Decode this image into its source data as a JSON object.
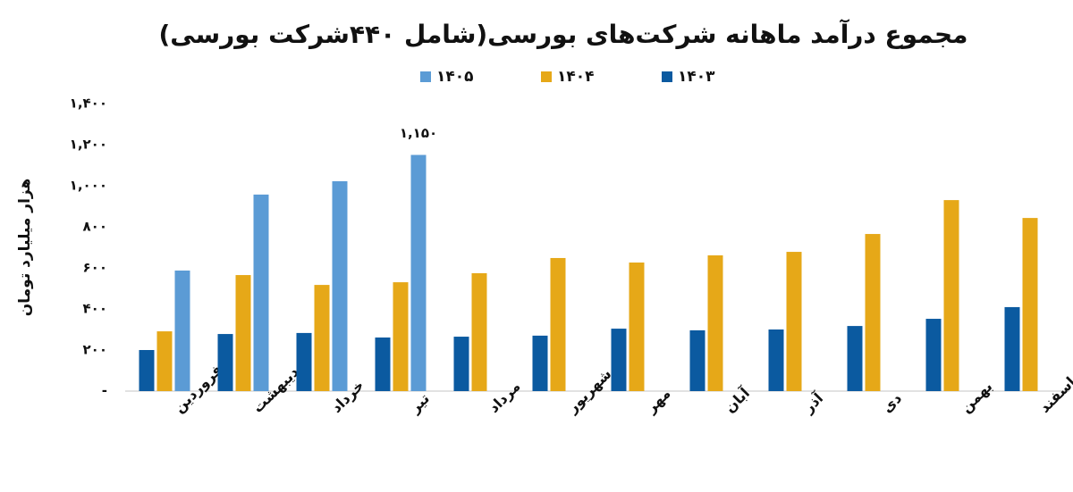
{
  "chart_data": {
    "type": "bar",
    "title": "مجموع درآمد ماهانه شرکت‌های بورسی(شامل ۴۴۰شرکت بورسی)",
    "y_label": "هزار میلیارد تومان",
    "categories": [
      "فروردین",
      "اردیبهشت",
      "خرداد",
      "تیر",
      "مرداد",
      "شهریور",
      "مهر",
      "آبان",
      "آذر",
      "دی",
      "بهمن",
      "اسفند"
    ],
    "series": [
      {
        "name": "۱۴۰۳",
        "color": "#0b5aa0",
        "values": [
          200,
          278,
          283,
          261,
          265,
          270,
          304,
          296,
          300,
          317,
          352,
          409
        ]
      },
      {
        "name": "۱۴۰۴",
        "color": "#e6a818",
        "values": [
          291,
          565,
          517,
          530,
          574,
          648,
          626,
          661,
          678,
          765,
          930,
          843
        ]
      },
      {
        "name": "۱۴۰۵",
        "color": "#5b9bd5",
        "values": [
          587,
          957,
          1022,
          1150,
          null,
          null,
          null,
          null,
          null,
          null,
          null,
          null
        ],
        "value_labels": [
          null,
          null,
          null,
          "۱,۱۵۰",
          null,
          null,
          null,
          null,
          null,
          null,
          null,
          null
        ]
      }
    ],
    "ylim": [
      0,
      1400
    ],
    "yticks": [
      {
        "value": 0,
        "label": "-"
      },
      {
        "value": 200,
        "label": "۲۰۰"
      },
      {
        "value": 400,
        "label": "۴۰۰"
      },
      {
        "value": 600,
        "label": "۶۰۰"
      },
      {
        "value": 800,
        "label": "۸۰۰"
      },
      {
        "value": 1000,
        "label": "۱,۰۰۰"
      },
      {
        "value": 1200,
        "label": "۱,۲۰۰"
      },
      {
        "value": 1400,
        "label": "۱,۴۰۰"
      }
    ],
    "grid": false
  }
}
